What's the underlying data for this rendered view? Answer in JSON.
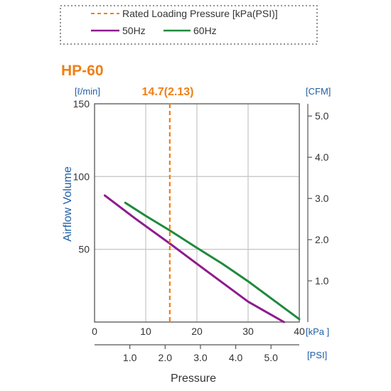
{
  "colors": {
    "orange": "#f07f14",
    "purple": "#8e1b8f",
    "green": "#1e8a3c",
    "blue": "#1f5fa6",
    "grid": "#c8c8c8",
    "axis": "#555555"
  },
  "chart_data": {
    "type": "line",
    "title": "HP-60",
    "xlabel": "Pressure",
    "ylabel": "Airflow Volume",
    "x_unit": "[kPa ]",
    "x2_unit": "[PSI]",
    "y_unit": "[ℓ/min]",
    "y2_unit": "[CFM]",
    "xlim": [
      0,
      40
    ],
    "ylim": [
      0,
      150
    ],
    "x_ticks": [
      "0",
      "10",
      "20",
      "30",
      "40"
    ],
    "y_ticks": [
      "50",
      "100",
      "150"
    ],
    "x2_ticks": [
      "1.0",
      "2.0",
      "3.0",
      "4.0",
      "5.0"
    ],
    "x2_tick_values": [
      1.0,
      2.0,
      3.0,
      4.0,
      5.0
    ],
    "y2_ticks": [
      "1.0",
      "2.0",
      "3.0",
      "4.0",
      "5.0"
    ],
    "y2_tick_values": [
      1.0,
      2.0,
      3.0,
      4.0,
      5.0
    ],
    "grid": true,
    "legend": {
      "position": "top",
      "rated_label": "Rated Loading Pressure [kPa(PSI)]",
      "entries": [
        "50Hz",
        "60Hz"
      ]
    },
    "rated_pressure": 14.7,
    "rated_label": "14.7(2.13)",
    "series": [
      {
        "name": "50Hz",
        "color": "#8e1b8f",
        "x": [
          2,
          8,
          14.7,
          20,
          25,
          30,
          35,
          37
        ],
        "y": [
          87,
          71,
          54,
          40,
          27,
          14,
          4,
          0
        ]
      },
      {
        "name": "60Hz",
        "color": "#1e8a3c",
        "x": [
          6,
          10,
          14.7,
          20,
          25,
          30,
          35,
          40
        ],
        "y": [
          82,
          73,
          63,
          51,
          40,
          28,
          15,
          2
        ]
      }
    ]
  }
}
